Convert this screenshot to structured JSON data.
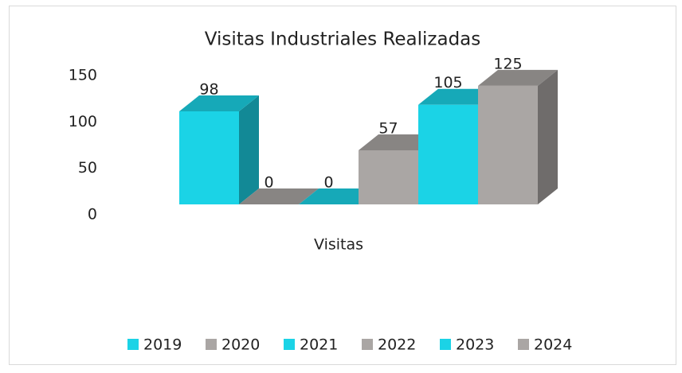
{
  "chart_data": {
    "type": "bar3d",
    "title": "Visitas Industriales Realizadas",
    "categories": [
      "Visitas"
    ],
    "series": [
      {
        "name": "2019",
        "color": "#1bd3e6",
        "values": [
          98
        ]
      },
      {
        "name": "2020",
        "color": "#aaa6a4",
        "values": [
          0
        ]
      },
      {
        "name": "2021",
        "color": "#1bd3e6",
        "values": [
          0
        ]
      },
      {
        "name": "2022",
        "color": "#aaa6a4",
        "values": [
          57
        ]
      },
      {
        "name": "2023",
        "color": "#1bd3e6",
        "values": [
          105
        ]
      },
      {
        "name": "2024",
        "color": "#aaa6a4",
        "values": [
          125
        ]
      }
    ],
    "ylim": [
      0,
      150
    ],
    "yticks": [
      0,
      50,
      100,
      150
    ],
    "grid": false,
    "legend": "bottom"
  }
}
